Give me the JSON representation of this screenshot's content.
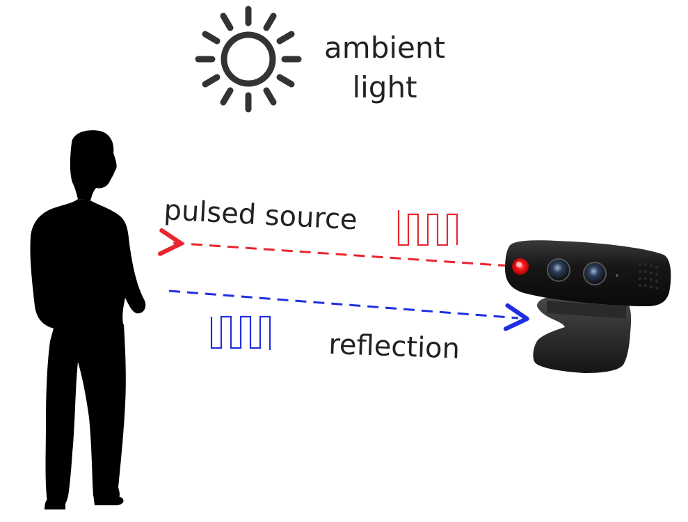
{
  "labels": {
    "ambient_line1": "ambient",
    "ambient_line2": "light",
    "pulsed_source": "pulsed source",
    "reflection": "reflection"
  },
  "icons": {
    "sun": "sun-icon",
    "person": "person-silhouette",
    "camera": "depth-camera"
  },
  "colors": {
    "source": "#e8262d",
    "reflection": "#1f2fe0",
    "sun": "#333333",
    "text": "#222222",
    "silhouette": "#000000",
    "camera_body": "#1b1b1b",
    "led": "#ff1a1a"
  }
}
